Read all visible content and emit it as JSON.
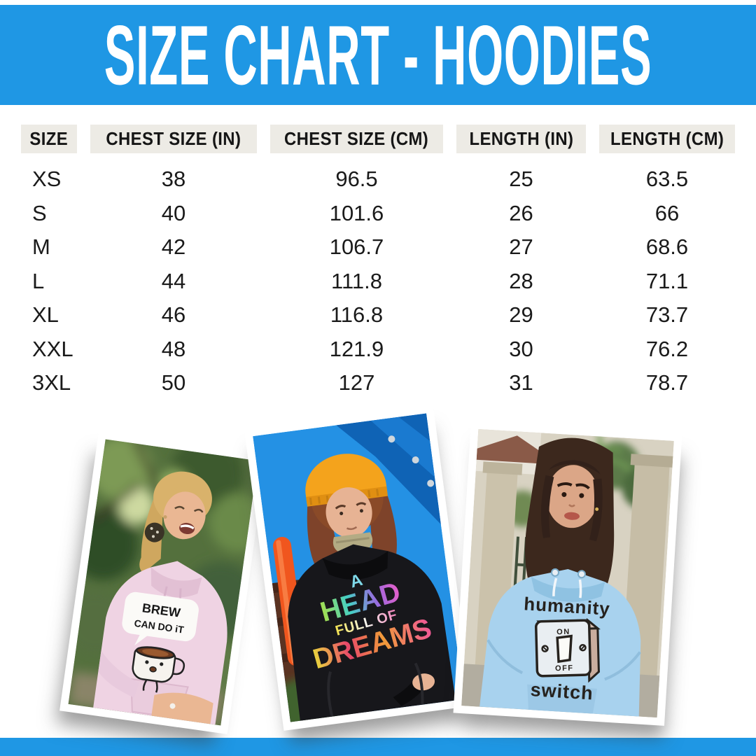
{
  "header": {
    "title": "SIZE CHART - HOODIES"
  },
  "table": {
    "columns": [
      "SIZE",
      "CHEST SIZE (IN)",
      "CHEST SIZE (CM)",
      "LENGTH (IN)",
      "LENGTH (CM)"
    ],
    "rows": [
      [
        "XS",
        "38",
        "96.5",
        "25",
        "63.5"
      ],
      [
        "S",
        "40",
        "101.6",
        "26",
        "66"
      ],
      [
        "M",
        "42",
        "106.7",
        "27",
        "68.6"
      ],
      [
        "L",
        "44",
        "111.8",
        "28",
        "71.1"
      ],
      [
        "XL",
        "46",
        "116.8",
        "29",
        "73.7"
      ],
      [
        "XXL",
        "48",
        "121.9",
        "30",
        "76.2"
      ],
      [
        "3XL",
        "50",
        "127",
        "31",
        "78.7"
      ]
    ]
  },
  "photos": {
    "pink": {
      "design_line1": "BREW",
      "design_line2": "CAN DO iT"
    },
    "black": {
      "word1": "A",
      "word2": "HEAD",
      "word3": "FULL OF",
      "word4": "DREAMS"
    },
    "blue": {
      "line1": "humanity",
      "switch_on": "ON",
      "switch_off": "OFF",
      "line2": "switch"
    }
  },
  "colors": {
    "banner_blue": "#1F97E4",
    "header_cell_bg": "#EDEBE5",
    "text_dark": "#161616",
    "pink_hoodie": "#EFD3E3",
    "black_hoodie": "#17171B",
    "blue_hoodie": "#A8D2EE"
  }
}
